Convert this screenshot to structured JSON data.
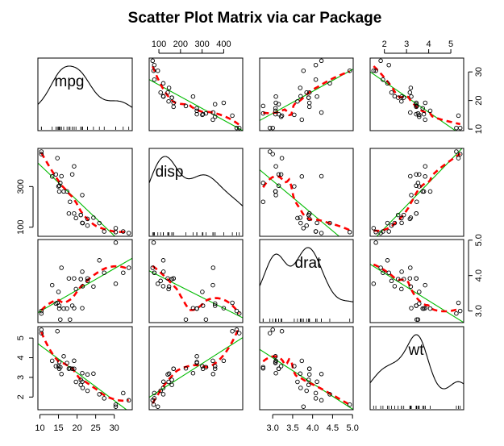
{
  "chart_data": {
    "type": "scatter",
    "title": "Scatter Plot Matrix via car Package",
    "variables": [
      "mpg",
      "disp",
      "drat",
      "wt"
    ],
    "ranges": {
      "mpg": [
        10.4,
        33.9
      ],
      "disp": [
        71.1,
        472
      ],
      "drat": [
        2.76,
        4.93
      ],
      "wt": [
        1.513,
        5.424
      ]
    },
    "ticks": {
      "mpg": [
        10,
        15,
        20,
        25,
        30
      ],
      "mpg_right": [
        10,
        20,
        30
      ],
      "disp": [
        100,
        200,
        300,
        400
      ],
      "disp_left": [
        100,
        300
      ],
      "drat": [
        3.0,
        4.0,
        5.0
      ],
      "drat_bottom": [
        3.0,
        3.5,
        4.0,
        4.5,
        5.0
      ],
      "wt": [
        2,
        3,
        4,
        5
      ],
      "wt_top": [
        2,
        3,
        4,
        5
      ]
    },
    "tick_labels": {
      "mpg_bottom": [
        "10",
        "15",
        "20",
        "25",
        "30"
      ],
      "disp_top": [
        "100",
        "200",
        "300",
        "400"
      ],
      "wt_top": [
        "2",
        "3",
        "4",
        "5"
      ],
      "mpg_right": [
        "10",
        "20",
        "30"
      ],
      "disp_left": [
        "100",
        "300"
      ],
      "drat_right": [
        "3.0",
        "4.0",
        "5.0"
      ],
      "wt_left": [
        "2",
        "3",
        "4",
        "5"
      ],
      "drat_bottom": [
        "3.0",
        "3.5",
        "4.0",
        "4.5",
        "5.0"
      ]
    },
    "series": [
      {
        "name": "mpg",
        "values": [
          21.0,
          21.0,
          22.8,
          21.4,
          18.7,
          18.1,
          14.3,
          24.4,
          22.8,
          19.2,
          17.8,
          16.4,
          17.3,
          15.2,
          10.4,
          10.4,
          14.7,
          32.4,
          30.4,
          33.9,
          21.5,
          15.5,
          15.2,
          13.3,
          19.2,
          27.3,
          26.0,
          30.4,
          15.8,
          19.7,
          15.0,
          21.4
        ]
      },
      {
        "name": "disp",
        "values": [
          160,
          160,
          108,
          258,
          360,
          225,
          360,
          146.7,
          140.8,
          167.6,
          167.6,
          275.8,
          275.8,
          275.8,
          472,
          460,
          440,
          78.7,
          75.7,
          71.1,
          120.1,
          318,
          304,
          350,
          400,
          79,
          120.3,
          95.1,
          351,
          145,
          301,
          121
        ]
      },
      {
        "name": "drat",
        "values": [
          3.9,
          3.9,
          3.85,
          3.08,
          3.15,
          2.76,
          3.21,
          3.69,
          3.92,
          3.92,
          3.92,
          3.07,
          3.07,
          3.07,
          2.93,
          3.0,
          3.23,
          4.08,
          4.93,
          4.22,
          3.7,
          2.76,
          3.15,
          3.73,
          3.08,
          4.08,
          4.43,
          3.77,
          4.22,
          3.62,
          3.54,
          4.11
        ]
      },
      {
        "name": "wt",
        "values": [
          2.62,
          2.875,
          2.32,
          3.215,
          3.44,
          3.46,
          3.57,
          3.19,
          3.15,
          3.44,
          3.44,
          4.07,
          3.73,
          3.78,
          5.25,
          5.424,
          5.345,
          2.2,
          1.615,
          1.835,
          2.465,
          3.52,
          3.435,
          3.84,
          3.845,
          1.935,
          2.14,
          1.513,
          3.17,
          2.77,
          3.57,
          2.78
        ]
      }
    ],
    "fit_line_color": "#00bb00",
    "smooth_line_color": "#ff0000",
    "point_style": "open circle",
    "diagonal": "density"
  }
}
